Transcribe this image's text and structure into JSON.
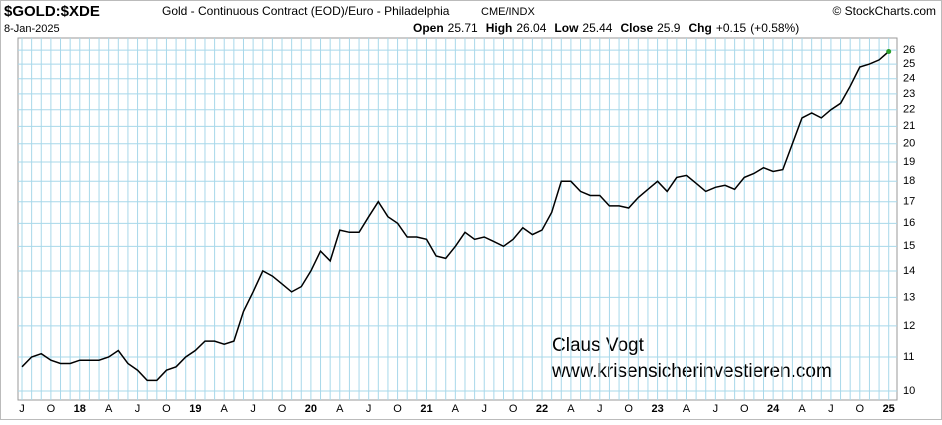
{
  "chart_data": {
    "type": "line",
    "symbol": "$GOLD:$XDE",
    "title": "Gold - Continuous Contract (EOD)/Euro - Philadelphia",
    "exchange": "CME/INDX",
    "source": "© StockCharts.com",
    "date": "8-Jan-2025",
    "quote": [
      {
        "label": "Open",
        "value": 25.71
      },
      {
        "label": "High",
        "value": 26.04
      },
      {
        "label": "Low",
        "value": 25.44
      },
      {
        "label": "Close",
        "value": 25.9
      }
    ],
    "change_label": "Chg",
    "change": "+0.15",
    "change_pct": "(+0.58%)",
    "annotations": [
      "Claus Vogt",
      "www.krisensicherinvestieren.com"
    ],
    "log_scale": true,
    "grid": true,
    "categories": [
      "J",
      null,
      null,
      "O",
      null,
      null,
      "18",
      null,
      null,
      "A",
      null,
      null,
      "J",
      null,
      null,
      "O",
      null,
      null,
      "19",
      null,
      null,
      "A",
      null,
      null,
      "J",
      null,
      null,
      "O",
      null,
      null,
      "20",
      null,
      null,
      "A",
      null,
      null,
      "J",
      null,
      null,
      "O",
      null,
      null,
      "21",
      null,
      null,
      "A",
      null,
      null,
      "J",
      null,
      null,
      "O",
      null,
      null,
      "22",
      null,
      null,
      "A",
      null,
      null,
      "J",
      null,
      null,
      "O",
      null,
      null,
      "23",
      null,
      null,
      "A",
      null,
      null,
      "J",
      null,
      null,
      "O",
      null,
      null,
      "24",
      null,
      null,
      "A",
      null,
      null,
      "J",
      null,
      null,
      "O",
      null,
      null,
      "25"
    ],
    "series": [
      {
        "color": "#000000",
        "values": [
          10.7,
          11.0,
          11.1,
          10.9,
          10.8,
          10.8,
          10.9,
          10.9,
          10.9,
          11.0,
          11.2,
          10.8,
          10.6,
          10.3,
          10.3,
          10.6,
          10.7,
          11.0,
          11.2,
          11.5,
          11.5,
          11.4,
          11.5,
          12.5,
          13.2,
          14.0,
          13.8,
          13.5,
          13.2,
          13.4,
          14.0,
          14.8,
          14.4,
          15.7,
          15.6,
          15.6,
          16.3,
          17.0,
          16.3,
          16.0,
          15.4,
          15.4,
          15.3,
          14.6,
          14.5,
          15.0,
          15.6,
          15.3,
          15.4,
          15.2,
          15.0,
          15.3,
          15.8,
          15.5,
          15.7,
          16.5,
          18.0,
          18.0,
          17.5,
          17.3,
          17.3,
          16.8,
          16.8,
          16.7,
          17.2,
          17.6,
          18.0,
          17.5,
          18.2,
          18.3,
          17.9,
          17.5,
          17.7,
          17.8,
          17.6,
          18.2,
          18.4,
          18.7,
          18.5,
          18.6,
          20.0,
          21.5,
          21.8,
          21.5,
          22.0,
          22.4,
          23.5,
          24.8,
          25.0,
          25.3,
          25.9
        ]
      }
    ],
    "ylim": [
      9.75,
      26.9
    ],
    "yticks": [
      10,
      11,
      12,
      13,
      14,
      15,
      16,
      17,
      18,
      19,
      20,
      21,
      22,
      23,
      24,
      25,
      26
    ]
  }
}
